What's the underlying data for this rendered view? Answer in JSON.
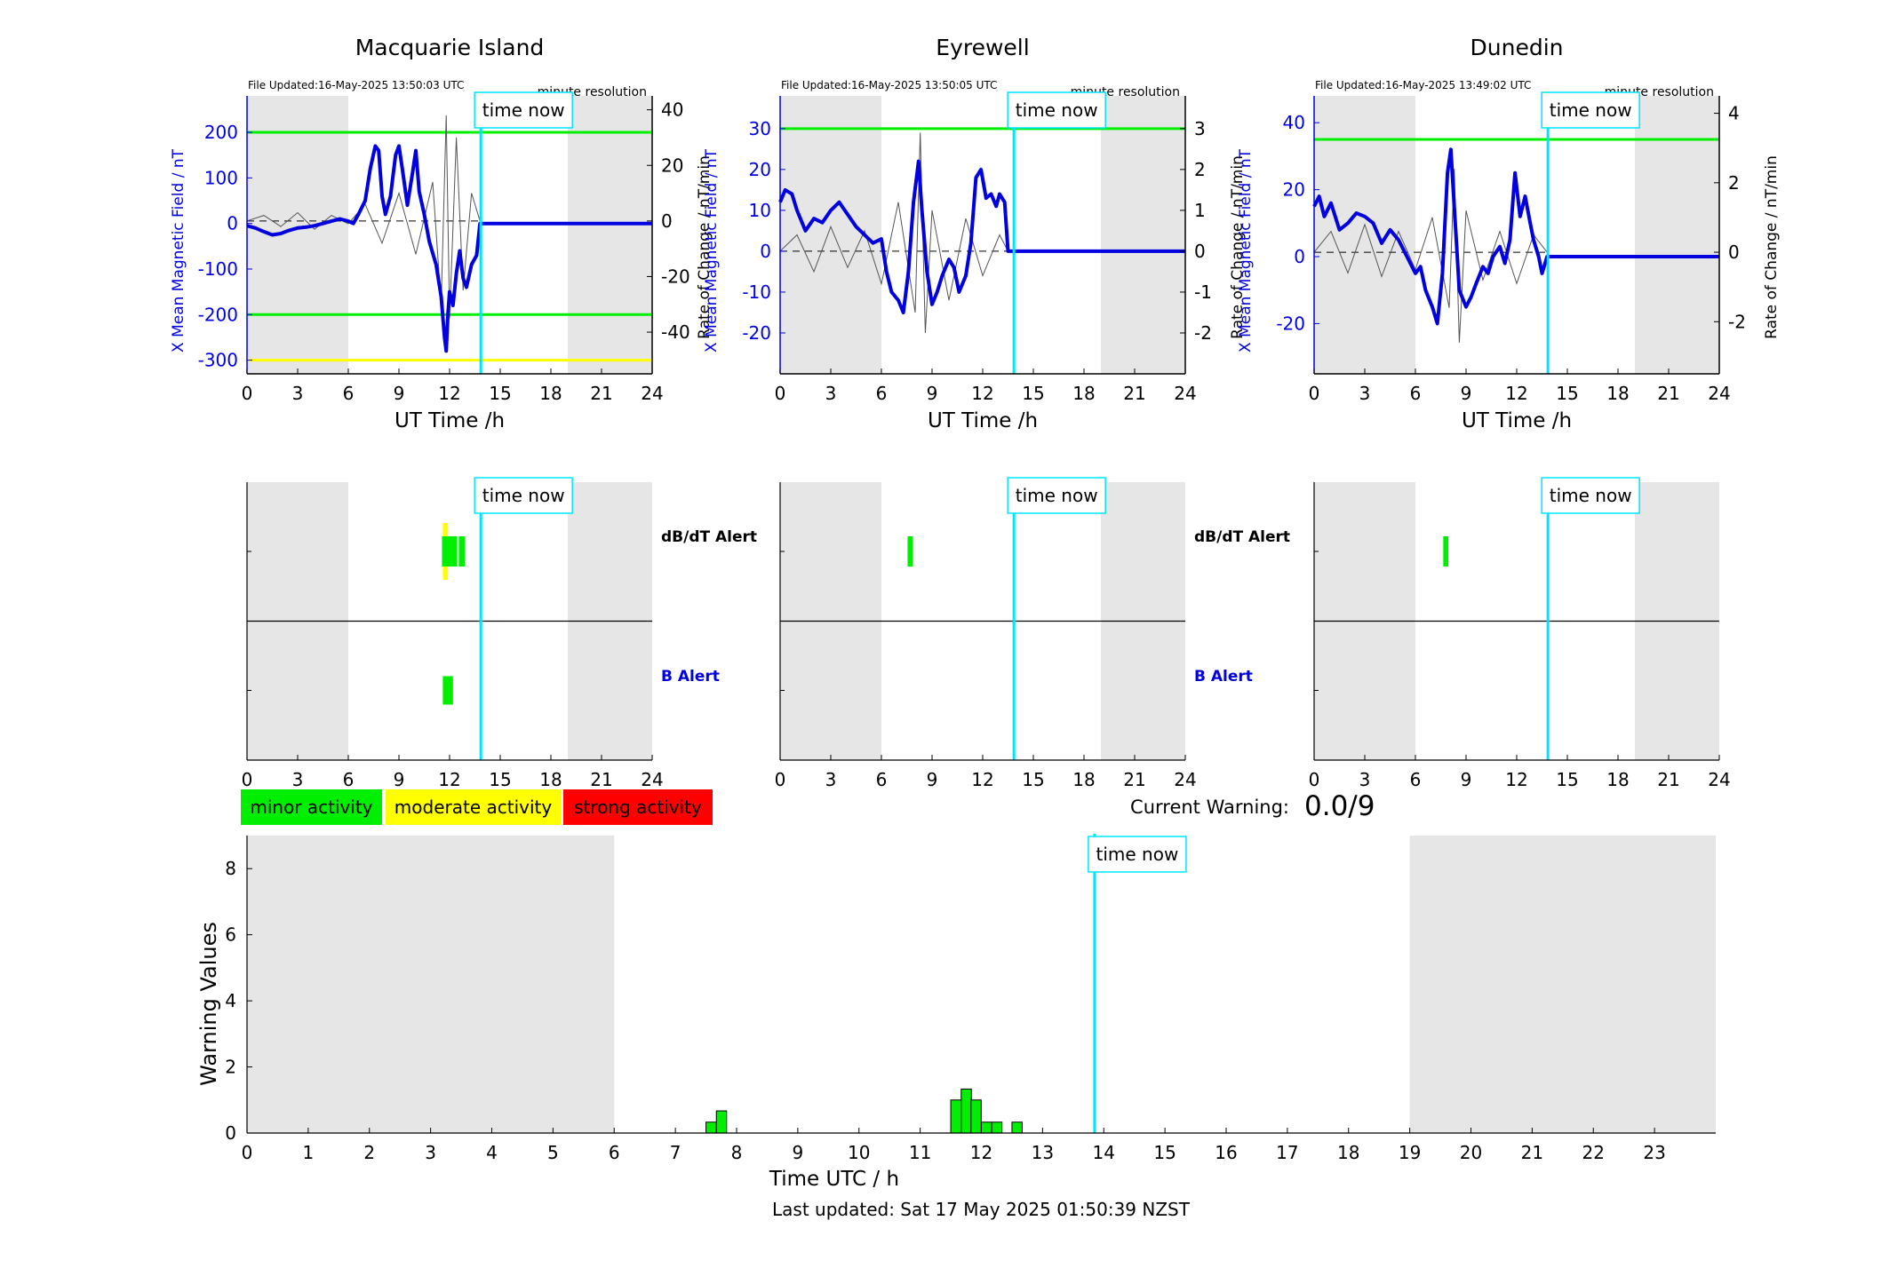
{
  "stations": [
    {
      "name": "Macquarie Island",
      "file_updated": "File Updated:16-May-2025 13:50:03 UTC",
      "resolution": "minute resolution",
      "time_now_label": "time now",
      "left_ylabel": "X Mean Magnetic Field / nT",
      "right_ylabel": "Rate of Change / nT/min",
      "xlabel": "UT Time /h",
      "left_ylim": [
        -330,
        280
      ],
      "left_ticks": [
        -300,
        -200,
        -100,
        0,
        100,
        200
      ],
      "right_ylim": [
        -55,
        45
      ],
      "right_ticks": [
        -40,
        -20,
        0,
        20,
        40
      ],
      "x_ticks": [
        0,
        3,
        6,
        9,
        12,
        15,
        18,
        21,
        24
      ],
      "night_bands": [
        [
          0,
          6
        ],
        [
          19,
          24
        ]
      ],
      "hlines": [
        {
          "value": 200,
          "color": "#00ee00"
        },
        {
          "value": -200,
          "color": "#00ee00"
        },
        {
          "value": -300,
          "color": "#ffff00"
        }
      ],
      "time_now_h": 13.85,
      "x_mean_series": [
        [
          0,
          -5
        ],
        [
          0.5,
          -10
        ],
        [
          1,
          -18
        ],
        [
          1.5,
          -25
        ],
        [
          2,
          -22
        ],
        [
          2.5,
          -15
        ],
        [
          3,
          -10
        ],
        [
          3.5,
          -8
        ],
        [
          4,
          -5
        ],
        [
          4.5,
          0
        ],
        [
          5,
          5
        ],
        [
          5.5,
          10
        ],
        [
          6,
          5
        ],
        [
          6.3,
          0
        ],
        [
          6.6,
          20
        ],
        [
          7,
          50
        ],
        [
          7.3,
          120
        ],
        [
          7.6,
          170
        ],
        [
          7.8,
          160
        ],
        [
          8,
          60
        ],
        [
          8.2,
          20
        ],
        [
          8.5,
          60
        ],
        [
          8.8,
          150
        ],
        [
          9.0,
          170
        ],
        [
          9.2,
          120
        ],
        [
          9.5,
          40
        ],
        [
          9.8,
          110
        ],
        [
          10,
          160
        ],
        [
          10.2,
          70
        ],
        [
          10.5,
          20
        ],
        [
          10.8,
          -40
        ],
        [
          11.2,
          -90
        ],
        [
          11.5,
          -160
        ],
        [
          11.7,
          -250
        ],
        [
          11.8,
          -280
        ],
        [
          11.9,
          -200
        ],
        [
          12,
          -150
        ],
        [
          12.2,
          -180
        ],
        [
          12.4,
          -110
        ],
        [
          12.6,
          -60
        ],
        [
          12.8,
          -120
        ],
        [
          13,
          -140
        ],
        [
          13.3,
          -90
        ],
        [
          13.6,
          -70
        ],
        [
          13.8,
          0
        ],
        [
          24,
          0
        ]
      ],
      "roc_series": [
        [
          0,
          0
        ],
        [
          1,
          2
        ],
        [
          2,
          -2
        ],
        [
          3,
          3
        ],
        [
          4,
          -3
        ],
        [
          5,
          2
        ],
        [
          6,
          -1
        ],
        [
          7,
          6
        ],
        [
          8,
          -8
        ],
        [
          9,
          10
        ],
        [
          10,
          -12
        ],
        [
          11,
          14
        ],
        [
          11.5,
          -30
        ],
        [
          11.8,
          38
        ],
        [
          12,
          -35
        ],
        [
          12.4,
          30
        ],
        [
          12.8,
          -25
        ],
        [
          13.3,
          10
        ],
        [
          13.8,
          0
        ]
      ],
      "alerts": {
        "labels": [
          "dB/dT Alert",
          "B Alert"
        ],
        "dbdt_yellow": [
          [
            11.6,
            11.9
          ]
        ],
        "dbdt_green": [
          [
            11.55,
            12.45
          ],
          [
            12.55,
            12.9
          ]
        ],
        "b_green": [
          [
            11.6,
            12.2
          ]
        ]
      }
    },
    {
      "name": "Eyrewell",
      "file_updated": "File Updated:16-May-2025 13:50:05 UTC",
      "resolution": "minute resolution",
      "time_now_label": "time now",
      "left_ylabel": "X Mean Magnetic Field / nT",
      "right_ylabel": "Rate of Change / nT/min",
      "xlabel": "UT Time /h",
      "left_ylim": [
        -30,
        38
      ],
      "left_ticks": [
        -20,
        -10,
        0,
        10,
        20,
        30
      ],
      "right_ylim": [
        -3.0,
        3.8
      ],
      "right_ticks": [
        -2,
        -1,
        0,
        1,
        2,
        3
      ],
      "x_ticks": [
        0,
        3,
        6,
        9,
        12,
        15,
        18,
        21,
        24
      ],
      "night_bands": [
        [
          0,
          6
        ],
        [
          19,
          24
        ]
      ],
      "hlines": [
        {
          "value": 30,
          "color": "#00ee00"
        }
      ],
      "time_now_h": 13.85,
      "x_mean_series": [
        [
          0,
          12
        ],
        [
          0.3,
          15
        ],
        [
          0.7,
          14
        ],
        [
          1,
          10
        ],
        [
          1.5,
          5
        ],
        [
          2,
          8
        ],
        [
          2.5,
          7
        ],
        [
          3,
          10
        ],
        [
          3.5,
          12
        ],
        [
          4,
          9
        ],
        [
          4.5,
          6
        ],
        [
          5,
          4
        ],
        [
          5.5,
          2
        ],
        [
          6,
          3
        ],
        [
          6.3,
          -5
        ],
        [
          6.6,
          -10
        ],
        [
          7,
          -12
        ],
        [
          7.3,
          -15
        ],
        [
          7.6,
          -5
        ],
        [
          7.9,
          12
        ],
        [
          8.2,
          22
        ],
        [
          8.4,
          10
        ],
        [
          8.7,
          -5
        ],
        [
          9,
          -13
        ],
        [
          9.3,
          -10
        ],
        [
          9.6,
          -6
        ],
        [
          10,
          -2
        ],
        [
          10.3,
          -4
        ],
        [
          10.6,
          -10
        ],
        [
          11,
          -6
        ],
        [
          11.3,
          2
        ],
        [
          11.6,
          18
        ],
        [
          11.9,
          20
        ],
        [
          12.2,
          13
        ],
        [
          12.5,
          14
        ],
        [
          12.8,
          11
        ],
        [
          13,
          14
        ],
        [
          13.3,
          12
        ],
        [
          13.5,
          0
        ],
        [
          24,
          0
        ]
      ],
      "roc_series": [
        [
          0,
          0
        ],
        [
          1,
          0.4
        ],
        [
          2,
          -0.5
        ],
        [
          3,
          0.6
        ],
        [
          4,
          -0.4
        ],
        [
          5,
          0.5
        ],
        [
          6,
          -0.8
        ],
        [
          7,
          1.2
        ],
        [
          8,
          -1.5
        ],
        [
          8.3,
          2.9
        ],
        [
          8.6,
          -2.0
        ],
        [
          9,
          1.0
        ],
        [
          10,
          -1.2
        ],
        [
          11,
          0.8
        ],
        [
          12,
          -0.6
        ],
        [
          13,
          0.4
        ],
        [
          13.5,
          0
        ]
      ],
      "alerts": {
        "labels": [
          "dB/dT Alert",
          "B Alert"
        ],
        "dbdt_yellow": [],
        "dbdt_green": [
          [
            7.55,
            7.85
          ]
        ],
        "b_green": []
      }
    },
    {
      "name": "Dunedin",
      "file_updated": "File Updated:16-May-2025 13:49:02 UTC",
      "resolution": "minute resolution",
      "time_now_label": "time now",
      "left_ylabel": "X Mean Magnetic Field / nT",
      "right_ylabel": "Rate of Change / nT/min",
      "xlabel": "UT Time /h",
      "left_ylim": [
        -35,
        48
      ],
      "left_ticks": [
        -20,
        0,
        20,
        40
      ],
      "right_ylim": [
        -3.5,
        4.5
      ],
      "right_ticks": [
        -2,
        0,
        2,
        4
      ],
      "x_ticks": [
        0,
        3,
        6,
        9,
        12,
        15,
        18,
        21,
        24
      ],
      "night_bands": [
        [
          0,
          6
        ],
        [
          19,
          24
        ]
      ],
      "hlines": [
        {
          "value": 35,
          "color": "#00ee00"
        }
      ],
      "time_now_h": 13.85,
      "x_mean_series": [
        [
          0,
          15
        ],
        [
          0.3,
          18
        ],
        [
          0.6,
          12
        ],
        [
          1,
          16
        ],
        [
          1.5,
          8
        ],
        [
          2,
          10
        ],
        [
          2.5,
          13
        ],
        [
          3,
          12
        ],
        [
          3.5,
          10
        ],
        [
          4,
          4
        ],
        [
          4.5,
          8
        ],
        [
          5,
          5
        ],
        [
          5.5,
          0
        ],
        [
          6,
          -5
        ],
        [
          6.3,
          -3
        ],
        [
          6.6,
          -10
        ],
        [
          7,
          -15
        ],
        [
          7.3,
          -20
        ],
        [
          7.6,
          -5
        ],
        [
          7.9,
          25
        ],
        [
          8.1,
          32
        ],
        [
          8.3,
          15
        ],
        [
          8.6,
          -10
        ],
        [
          9,
          -15
        ],
        [
          9.3,
          -12
        ],
        [
          9.6,
          -8
        ],
        [
          10,
          -3
        ],
        [
          10.3,
          -5
        ],
        [
          10.6,
          0
        ],
        [
          11,
          3
        ],
        [
          11.3,
          -2
        ],
        [
          11.6,
          5
        ],
        [
          11.9,
          25
        ],
        [
          12.2,
          12
        ],
        [
          12.5,
          18
        ],
        [
          12.8,
          10
        ],
        [
          13,
          5
        ],
        [
          13.3,
          0
        ],
        [
          13.5,
          -5
        ],
        [
          13.8,
          0
        ],
        [
          24,
          0
        ]
      ],
      "roc_series": [
        [
          0,
          0
        ],
        [
          1,
          0.6
        ],
        [
          2,
          -0.6
        ],
        [
          3,
          0.8
        ],
        [
          4,
          -0.7
        ],
        [
          5,
          0.6
        ],
        [
          6,
          -0.5
        ],
        [
          7,
          1.0
        ],
        [
          8,
          -1.6
        ],
        [
          8.3,
          2.4
        ],
        [
          8.6,
          -2.6
        ],
        [
          9,
          1.2
        ],
        [
          10,
          -0.8
        ],
        [
          11,
          0.6
        ],
        [
          12,
          -0.9
        ],
        [
          13,
          0.5
        ],
        [
          13.8,
          0
        ]
      ],
      "alerts": {
        "labels": [
          "dB/dT Alert",
          "B Alert"
        ],
        "dbdt_yellow": [],
        "dbdt_green": [
          [
            7.65,
            7.95
          ]
        ],
        "b_green": []
      }
    }
  ],
  "legend": {
    "items": [
      {
        "label": "minor activity",
        "color": "#00ee00"
      },
      {
        "label": "moderate activity",
        "color": "#ffff00"
      },
      {
        "label": "strong activity",
        "color": "#ff0000"
      }
    ]
  },
  "current_warning": {
    "label": "Current Warning:",
    "value": "0.0/9"
  },
  "chart_data": {
    "type": "bar",
    "ylabel": "Warning Values",
    "xlabel": "Time UTC / h",
    "ylim": [
      0,
      9
    ],
    "y_ticks": [
      0,
      2,
      4,
      6,
      8
    ],
    "x_ticks": [
      0,
      1,
      2,
      3,
      4,
      5,
      6,
      7,
      8,
      9,
      10,
      11,
      12,
      13,
      14,
      15,
      16,
      17,
      18,
      19,
      20,
      21,
      22,
      23
    ],
    "xlim": [
      0,
      24
    ],
    "night_bands": [
      [
        0,
        6
      ],
      [
        19,
        24
      ]
    ],
    "time_now_h": 13.85,
    "time_now_label": "time now",
    "bar_color": "#00ee00",
    "bars": [
      {
        "x": 7.5,
        "value": 0.33
      },
      {
        "x": 7.67,
        "value": 0.67
      },
      {
        "x": 11.5,
        "value": 1.0
      },
      {
        "x": 11.67,
        "value": 1.33
      },
      {
        "x": 11.83,
        "value": 1.0
      },
      {
        "x": 12.0,
        "value": 0.33
      },
      {
        "x": 12.17,
        "value": 0.33
      },
      {
        "x": 12.5,
        "value": 0.33
      }
    ]
  },
  "footer": {
    "last_updated": "Last updated: Sat 17 May 2025 01:50:39 NZST"
  }
}
